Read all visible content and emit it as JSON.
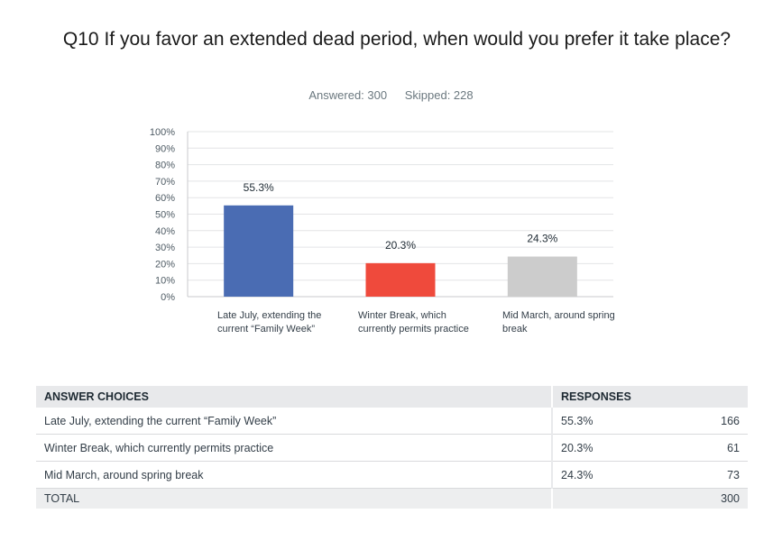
{
  "question": {
    "title": "Q10 If you favor an extended dead period, when would you prefer it take place?",
    "answered_label": "Answered: 300",
    "skipped_label": "Skipped: 228"
  },
  "chart_data": {
    "type": "bar",
    "categories": [
      "Late July, extending the current “Family Week”",
      "Winter Break, which currently permits practice",
      "Mid March, around spring break"
    ],
    "values": [
      55.3,
      20.3,
      24.3
    ],
    "value_labels": [
      "55.3%",
      "20.3%",
      "24.3%"
    ],
    "colors": [
      "#4a6cb3",
      "#ef4a3c",
      "#cccccc"
    ],
    "ylim": [
      0,
      100
    ],
    "yticks": [
      "0%",
      "10%",
      "20%",
      "30%",
      "40%",
      "50%",
      "60%",
      "70%",
      "80%",
      "90%",
      "100%"
    ],
    "grid": true,
    "title": "",
    "xlabel": "",
    "ylabel": ""
  },
  "table": {
    "headers": {
      "choices": "ANSWER CHOICES",
      "responses": "RESPONSES"
    },
    "rows": [
      {
        "choice": "Late July, extending the current “Family Week”",
        "percent": "55.3%",
        "count": "166"
      },
      {
        "choice": "Winter Break, which currently permits practice",
        "percent": "20.3%",
        "count": "61"
      },
      {
        "choice": "Mid March, around spring break",
        "percent": "24.3%",
        "count": "73"
      }
    ],
    "total": {
      "label": "TOTAL",
      "count": "300"
    }
  }
}
